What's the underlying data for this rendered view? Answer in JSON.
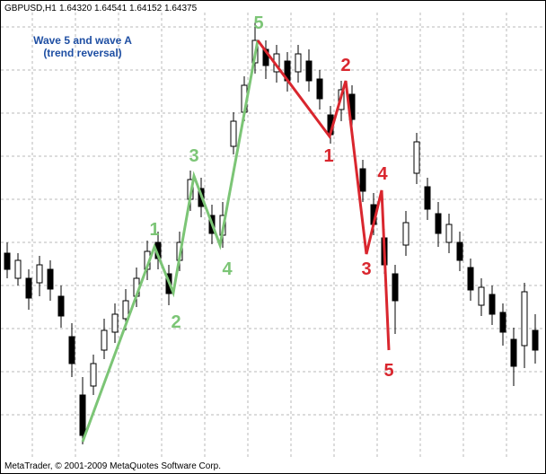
{
  "header": {
    "symbol": "GBPUSD,H1",
    "prices": [
      "1.64320",
      "1.64541",
      "1.64152",
      "1.64375"
    ]
  },
  "annotation": {
    "line1": "Wave 5 and wave A",
    "line2": "(trend reversal)"
  },
  "impulse_labels": [
    "1",
    "2",
    "3",
    "4",
    "5"
  ],
  "correction_labels": [
    "1",
    "2",
    "3",
    "4",
    "5"
  ],
  "footer": "MetaTrader, © 2001-2009 MetaQuotes Software Corp."
}
